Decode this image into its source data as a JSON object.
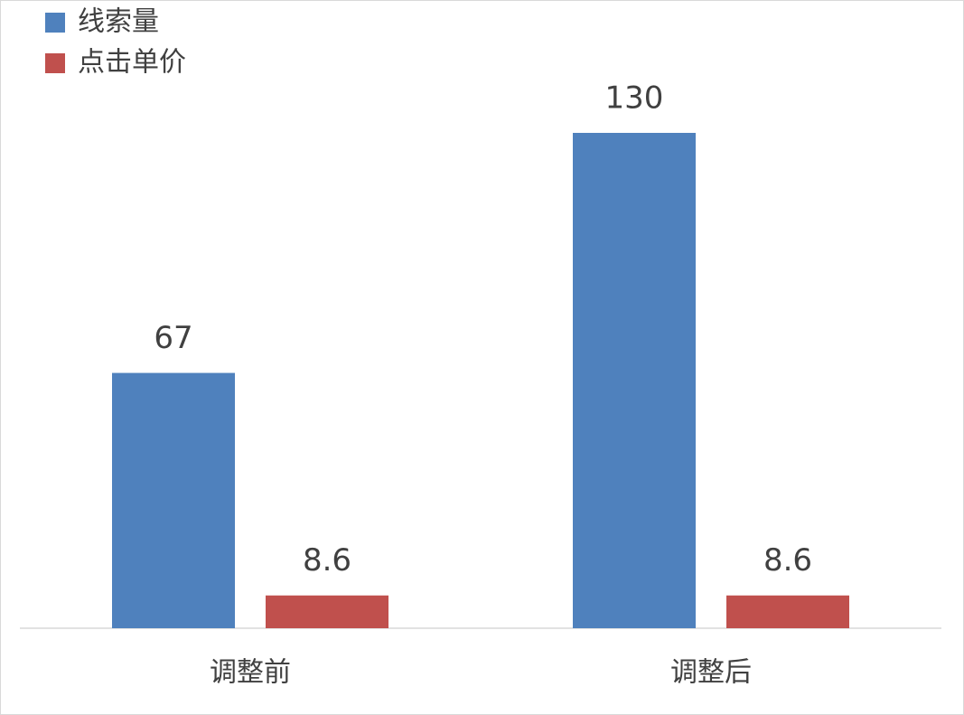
{
  "chart_data": {
    "type": "bar",
    "categories": [
      "调整前",
      "调整后"
    ],
    "series": [
      {
        "name": "线索量",
        "color": "#4f81bd",
        "values": [
          67,
          130
        ]
      },
      {
        "name": "点击单价",
        "color": "#c0504d",
        "values": [
          8.6,
          8.6
        ]
      }
    ],
    "legend": "top-left"
  }
}
